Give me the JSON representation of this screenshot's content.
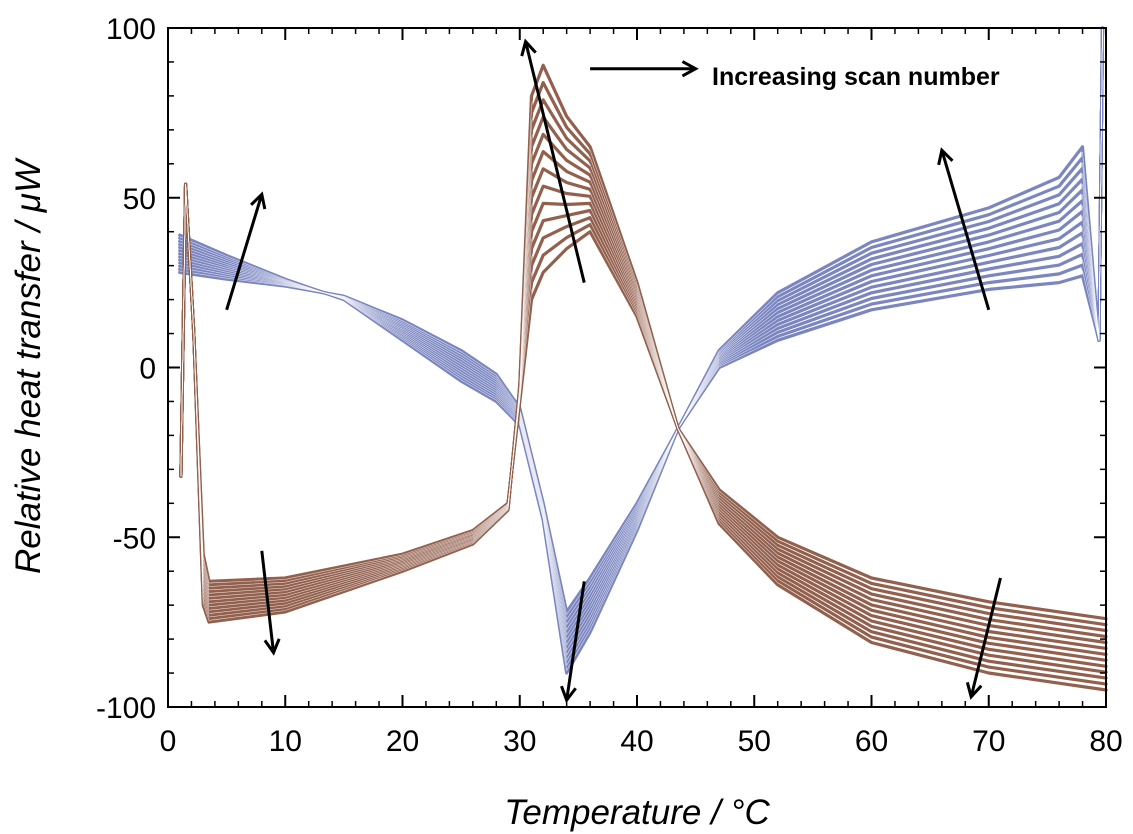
{
  "chart_data": {
    "type": "line",
    "xlabel": "Temperature / °C",
    "ylabel": "Relative heat transfer / μW",
    "xlim": [
      0,
      80
    ],
    "ylim": [
      -100,
      100
    ],
    "xticks": [
      0,
      10,
      20,
      30,
      40,
      50,
      60,
      70,
      80
    ],
    "yticks": [
      -100,
      -50,
      0,
      50,
      100
    ],
    "grid": false,
    "legend": null,
    "annotation": "Increasing scan number",
    "colors": {
      "heating": "#7B86C0",
      "cooling": "#93604E"
    },
    "scan_count": 13,
    "series": [
      {
        "group": "heating",
        "first_scan": [
          [
            1,
            28
          ],
          [
            5,
            26
          ],
          [
            10,
            24
          ],
          [
            15,
            21
          ],
          [
            20,
            14
          ],
          [
            25,
            5
          ],
          [
            28,
            -2
          ],
          [
            30,
            -12
          ],
          [
            32,
            -40
          ],
          [
            34,
            -72
          ],
          [
            36,
            -62
          ],
          [
            40,
            -40
          ],
          [
            43.5,
            -18
          ],
          [
            47,
            0
          ],
          [
            52,
            8
          ],
          [
            60,
            17
          ],
          [
            70,
            23
          ],
          [
            76,
            25
          ],
          [
            78,
            27
          ],
          [
            79.4,
            8
          ],
          [
            79.7,
            100
          ]
        ],
        "last_scan": [
          [
            1,
            39
          ],
          [
            5,
            33
          ],
          [
            10,
            26
          ],
          [
            15,
            20
          ],
          [
            20,
            8
          ],
          [
            25,
            -4
          ],
          [
            28,
            -10
          ],
          [
            30,
            -17
          ],
          [
            32,
            -45
          ],
          [
            34,
            -90
          ],
          [
            36,
            -78
          ],
          [
            40,
            -48
          ],
          [
            43.5,
            -18
          ],
          [
            47,
            5
          ],
          [
            52,
            22
          ],
          [
            60,
            37
          ],
          [
            70,
            47
          ],
          [
            76,
            56
          ],
          [
            78,
            65
          ],
          [
            79.4,
            8
          ],
          [
            79.7,
            100
          ]
        ]
      },
      {
        "group": "cooling",
        "first_scan": [
          [
            1.1,
            -32
          ],
          [
            1.5,
            54
          ],
          [
            2.2,
            10
          ],
          [
            3,
            -55
          ],
          [
            3.5,
            -63
          ],
          [
            10,
            -62
          ],
          [
            20,
            -55
          ],
          [
            26,
            -48
          ],
          [
            29,
            -40
          ],
          [
            30,
            -10
          ],
          [
            31,
            20
          ],
          [
            32,
            28
          ],
          [
            34,
            35
          ],
          [
            36,
            40
          ],
          [
            40,
            15
          ],
          [
            43.5,
            -18
          ],
          [
            47,
            -36
          ],
          [
            52,
            -50
          ],
          [
            60,
            -62
          ],
          [
            70,
            -69
          ],
          [
            80,
            -74
          ]
        ],
        "last_scan": [
          [
            1.1,
            -32
          ],
          [
            1.5,
            54
          ],
          [
            2.2,
            10
          ],
          [
            3,
            -70
          ],
          [
            3.5,
            -75
          ],
          [
            10,
            -72
          ],
          [
            20,
            -60
          ],
          [
            26,
            -52
          ],
          [
            29,
            -42
          ],
          [
            30,
            -5
          ],
          [
            31,
            80
          ],
          [
            32,
            89
          ],
          [
            34,
            74
          ],
          [
            36,
            65
          ],
          [
            40,
            25
          ],
          [
            43.5,
            -18
          ],
          [
            47,
            -46
          ],
          [
            52,
            -64
          ],
          [
            60,
            -81
          ],
          [
            70,
            -90
          ],
          [
            80,
            -95
          ]
        ]
      }
    ],
    "trend_arrows": [
      {
        "from": [
          5,
          17
        ],
        "to": [
          8,
          51
        ]
      },
      {
        "from": [
          8,
          -54
        ],
        "to": [
          9,
          -84
        ]
      },
      {
        "from": [
          35.5,
          25
        ],
        "to": [
          30.5,
          96
        ]
      },
      {
        "from": [
          35.5,
          -63
        ],
        "to": [
          34,
          -98
        ]
      },
      {
        "from": [
          70,
          17
        ],
        "to": [
          66,
          64
        ]
      },
      {
        "from": [
          71,
          -62
        ],
        "to": [
          68.5,
          -97
        ]
      },
      {
        "from": [
          36,
          88
        ],
        "to": [
          45,
          88
        ]
      }
    ]
  }
}
